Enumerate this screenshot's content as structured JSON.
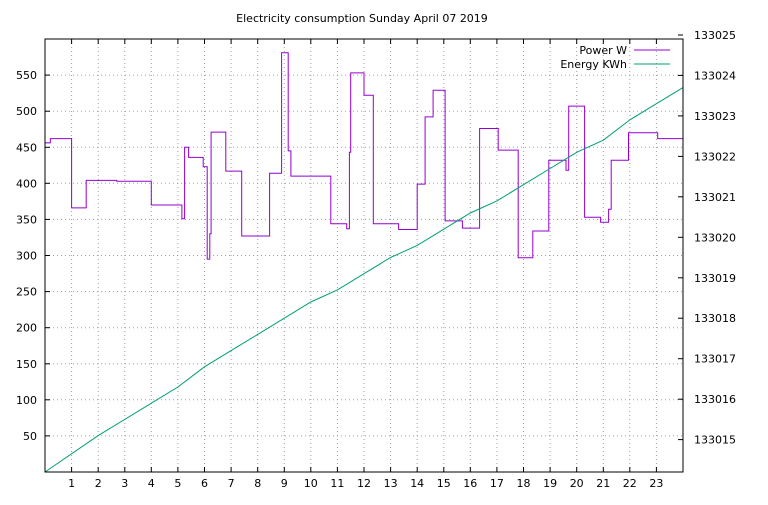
{
  "chart_data": {
    "type": "line",
    "title": "Electricity consumption Sunday April 07 2019",
    "xlabel": "",
    "ylabel": "",
    "y2label": "",
    "xlim": [
      0,
      24
    ],
    "ylim": [
      0,
      600
    ],
    "y2lim": [
      133014.2,
      133024.9
    ],
    "xticks": [
      1,
      2,
      3,
      4,
      5,
      6,
      7,
      8,
      9,
      10,
      11,
      12,
      13,
      14,
      15,
      16,
      17,
      18,
      19,
      20,
      21,
      22,
      23
    ],
    "yticks": [
      50,
      100,
      150,
      200,
      250,
      300,
      350,
      400,
      450,
      500,
      550
    ],
    "y2ticks": [
      133015,
      133016,
      133017,
      133018,
      133019,
      133020,
      133021,
      133022,
      133023,
      133024,
      133025
    ],
    "grid": true,
    "legend_position": "top-right",
    "series": [
      {
        "name": "Power W",
        "color": "#9400d3",
        "axis": "left",
        "style": "step",
        "x": [
          0,
          0.2,
          1.0,
          1.55,
          2.7,
          4.0,
          5.15,
          5.25,
          5.4,
          5.95,
          6.1,
          6.2,
          6.25,
          6.8,
          7.4,
          8.45,
          8.9,
          9.15,
          9.25,
          10.75,
          11.35,
          11.45,
          11.5,
          12.0,
          12.35,
          13.3,
          14.0,
          14.3,
          14.6,
          15.05,
          15.7,
          16.35,
          17.05,
          17.8,
          18.35,
          18.95,
          19.6,
          19.7,
          20.3,
          20.9,
          21.2,
          21.3,
          21.95,
          23.05,
          24.0
        ],
        "y": [
          456,
          462,
          366,
          404,
          403,
          370,
          351,
          450,
          436,
          423,
          295,
          330,
          471,
          417,
          327,
          414,
          581,
          445,
          410,
          344,
          337,
          443,
          553,
          522,
          344,
          336,
          399,
          492,
          529,
          348,
          338,
          476,
          446,
          297,
          334,
          432,
          418,
          507,
          353,
          346,
          364,
          432,
          470,
          462,
          462
        ]
      },
      {
        "name": "Energy KWh",
        "color": "#009e73",
        "axis": "right",
        "style": "line",
        "x": [
          0,
          2,
          4,
          5,
          6,
          7,
          8,
          9,
          10,
          11,
          12,
          13,
          14,
          15,
          16,
          17,
          18,
          19,
          20,
          21,
          22,
          23,
          24
        ],
        "y": [
          133014.2,
          133015.1,
          133015.9,
          133016.3,
          133016.8,
          133017.2,
          133017.6,
          133018.0,
          133018.4,
          133018.7,
          133019.1,
          133019.5,
          133019.8,
          133020.2,
          133020.6,
          133020.9,
          133021.3,
          133021.7,
          133022.1,
          133022.4,
          133022.9,
          133023.3,
          133023.7
        ]
      }
    ]
  }
}
